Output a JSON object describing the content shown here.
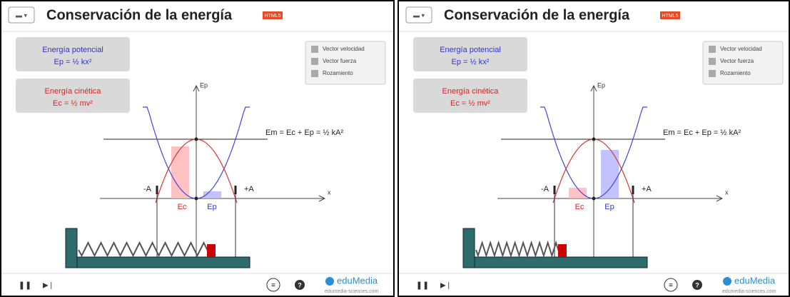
{
  "panels": [
    {
      "title": "Conservación de la energía",
      "badge": "HTML5",
      "potential": {
        "label": "Energía potencial",
        "formula": "Ep = ½ kx²"
      },
      "kinetic": {
        "label": "Energía cinética",
        "formula": "Ec = ½ mv²"
      },
      "options": [
        "Vector velocidad",
        "Vector fuerza",
        "Rozamiento"
      ],
      "energy_equation": "Em = Ec + Ep = ½ kA²",
      "axis_y": "Ep",
      "axis_x": "x",
      "minus_a": "-A",
      "plus_a": "+A",
      "bar_labels": [
        "Ec",
        "Ep"
      ],
      "brand": "eduMedia",
      "site": "edumedia-sciences.com"
    },
    {
      "title": "Conservación de la energía",
      "badge": "HTML5",
      "potential": {
        "label": "Energía potencial",
        "formula": "Ep = ½ kx²"
      },
      "kinetic": {
        "label": "Energía cinética",
        "formula": "Ec = ½ mv²"
      },
      "options": [
        "Vector velocidad",
        "Vector fuerza",
        "Rozamiento"
      ],
      "energy_equation": "Em = Ec + Ep = ½ kA²",
      "axis_y": "Ep",
      "axis_x": "x",
      "minus_a": "-A",
      "plus_a": "+A",
      "bar_labels": [
        "Ec",
        "Ep"
      ],
      "brand": "eduMedia",
      "site": "edumedia-sciences.com"
    }
  ]
}
